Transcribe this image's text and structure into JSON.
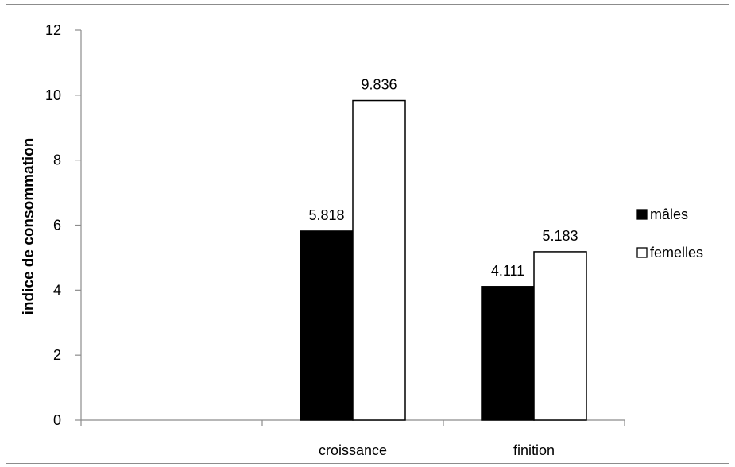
{
  "chart_data": {
    "type": "bar",
    "categories": [
      "",
      "croissance",
      "finition"
    ],
    "series": [
      {
        "name": "mâles",
        "values": [
          null,
          5.818,
          4.111
        ],
        "color": "#000000"
      },
      {
        "name": "femelles",
        "values": [
          null,
          9.836,
          5.183
        ],
        "color": "#ffffff"
      }
    ],
    "data_labels": [
      [
        null,
        "5.818",
        "4.111"
      ],
      [
        null,
        "9.836",
        "5.183"
      ]
    ],
    "xlabel": "",
    "ylabel": "indice de consommation",
    "ylim": [
      0,
      12
    ],
    "yticks": [
      0,
      2,
      4,
      6,
      8,
      10,
      12
    ],
    "grid": false,
    "legend_position": "right"
  }
}
